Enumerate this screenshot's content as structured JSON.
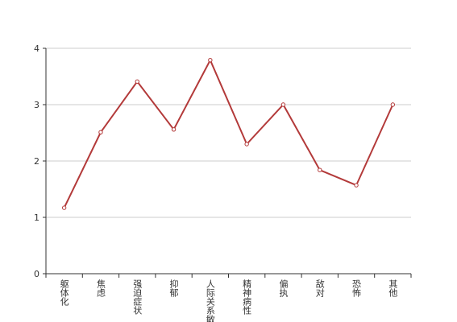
{
  "chart_data": {
    "type": "line",
    "categories": [
      "躯体化",
      "焦虑",
      "强迫症状",
      "抑郁",
      "人际关系敏感",
      "精神病性",
      "偏执",
      "敌对",
      "恐怖",
      "其他"
    ],
    "series": [
      {
        "name": null,
        "color": "#b33a3a",
        "values": [
          1.17,
          2.51,
          3.41,
          2.56,
          3.79,
          2.3,
          3.0,
          1.84,
          1.57,
          3.0
        ]
      }
    ],
    "ylim": [
      0,
      4
    ],
    "yticks": [
      0,
      1,
      2,
      3,
      4
    ],
    "grid": true
  }
}
